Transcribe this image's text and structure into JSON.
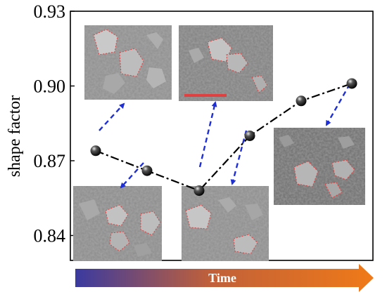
{
  "chart_data": {
    "type": "line",
    "ylabel": "shape factor",
    "xlabel": "",
    "ylim": [
      0.83,
      0.93
    ],
    "yticks": [
      0.84,
      0.87,
      0.9,
      0.93
    ],
    "ytick_labels": [
      "0.84",
      "0.87",
      "0.90",
      "0.93"
    ],
    "series": [
      {
        "values": [
          0.874,
          0.866,
          0.858,
          0.88,
          0.894,
          0.901
        ]
      }
    ],
    "line_style": "dash-dot",
    "marker": "sphere",
    "colors": {
      "line": "#000000",
      "marker": "#111111",
      "arrow": "#1f2fd6"
    },
    "time_arrow": {
      "label": "Time",
      "gradient_start": "#3a3aa0",
      "gradient_end": "#f07a18"
    },
    "insets": [
      {
        "type": "sem-micrograph",
        "depicts_point": 0
      },
      {
        "type": "sem-micrograph",
        "depicts_point": 1
      },
      {
        "type": "sem-micrograph",
        "depicts_point": 2
      },
      {
        "type": "sem-micrograph",
        "depicts_point": 3
      },
      {
        "type": "sem-micrograph",
        "depicts_point": 5
      }
    ]
  }
}
